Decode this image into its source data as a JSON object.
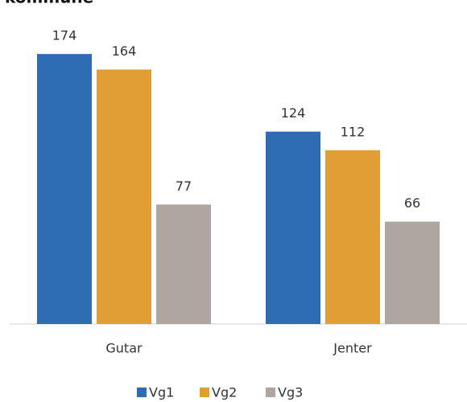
{
  "chart_data": {
    "type": "bar",
    "title": "kommune",
    "categories": [
      "Gutar",
      "Jenter"
    ],
    "series": [
      {
        "name": "Vg1",
        "color": "#2e6db4",
        "values": [
          174,
          124
        ]
      },
      {
        "name": "Vg2",
        "color": "#e09e35",
        "values": [
          164,
          112
        ]
      },
      {
        "name": "Vg3",
        "color": "#afa79f",
        "values": [
          77,
          66
        ]
      }
    ],
    "ylim": [
      0,
      200
    ],
    "legend": "bottom"
  }
}
